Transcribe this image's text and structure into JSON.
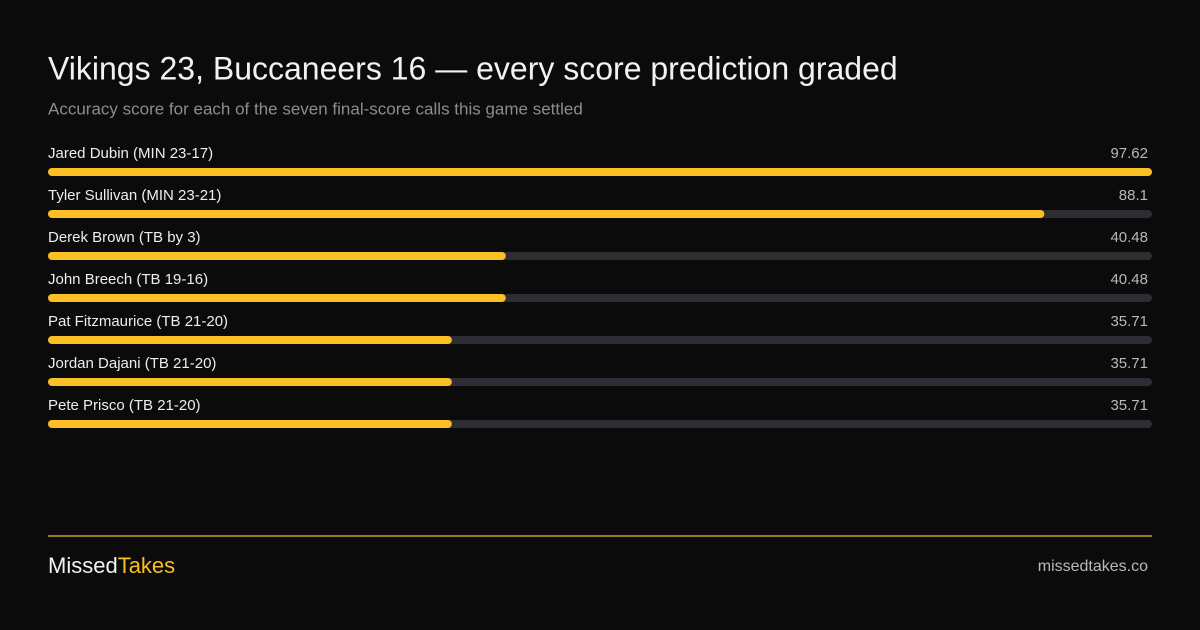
{
  "chart_data": {
    "type": "bar",
    "orientation": "horizontal",
    "title": "Vikings 23, Buccaneers 16 — every score prediction graded",
    "subtitle": "Accuracy score for each of the seven final-score calls this game settled",
    "categories": [
      "Jared Dubin (MIN 23-17)",
      "Tyler Sullivan (MIN 23-21)",
      "Derek Brown (TB by 3)",
      "John Breech (TB 19-16)",
      "Pat Fitzmaurice (TB 21-20)",
      "Jordan Dajani (TB 21-20)",
      "Pete Prisco (TB 21-20)"
    ],
    "values": [
      97.62,
      88.1,
      40.48,
      40.48,
      35.71,
      35.71,
      35.71
    ],
    "xlim": [
      0,
      97.62
    ],
    "color": "#fbbf24",
    "track_color": "#2e2d33"
  },
  "footer": {
    "brand": [
      "Missed",
      "Takes"
    ],
    "url": "missedtakes.co"
  }
}
